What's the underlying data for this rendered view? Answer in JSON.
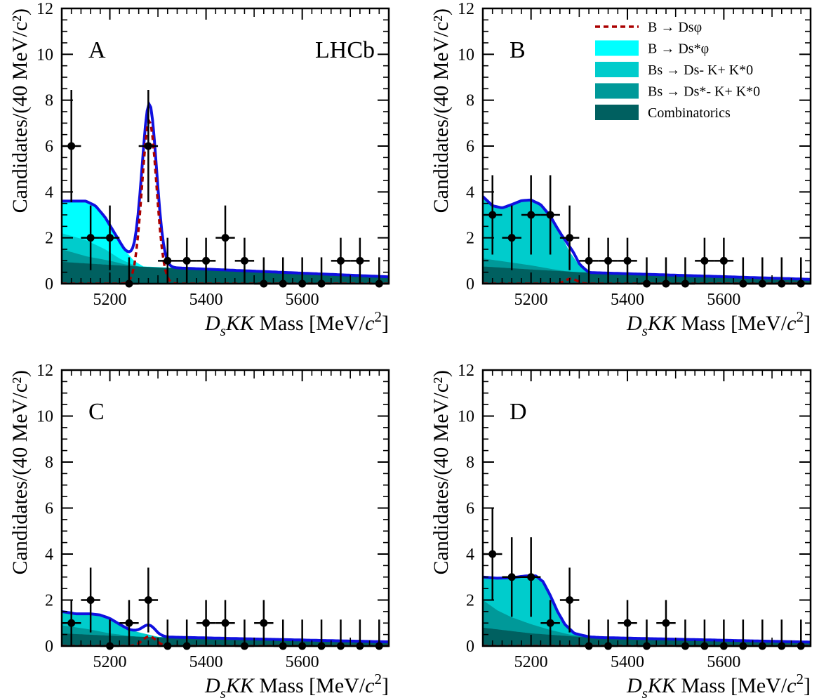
{
  "chart_data": [
    {
      "type": "line",
      "panel_label": "A",
      "experiment_label": "LHCb",
      "xlabel_parts": [
        "D",
        "s",
        "KK",
        " Mass [MeV/",
        "c",
        "2",
        "]"
      ],
      "ylabel": "Candidates/(40 MeV/c²)",
      "xlim": [
        5100,
        5780
      ],
      "ylim": [
        0,
        12
      ],
      "x_ticks": [
        5200,
        5400,
        5600
      ],
      "y_ticks": [
        0,
        2,
        4,
        6,
        8,
        10,
        12
      ],
      "points": {
        "x": [
          5120,
          5160,
          5200,
          5240,
          5280,
          5320,
          5360,
          5400,
          5440,
          5480,
          5520,
          5560,
          5600,
          5640,
          5680,
          5720,
          5760
        ],
        "y": [
          6,
          2,
          2,
          0,
          6,
          1,
          1,
          1,
          2,
          1,
          0,
          0,
          0,
          0,
          1,
          1,
          0
        ],
        "err_up": [
          2.45,
          1.41,
          1.41,
          1.15,
          2.45,
          1,
          1,
          1,
          1.41,
          1,
          1.15,
          1.15,
          1.15,
          1.15,
          1,
          1,
          1.15
        ]
      },
      "series": [
        {
          "name": "Combinatorics",
          "color": "#006060",
          "x": [
            5100,
            5200,
            5300,
            5400,
            5500,
            5600,
            5700,
            5780
          ],
          "y": [
            0.95,
            0.82,
            0.7,
            0.6,
            0.5,
            0.42,
            0.35,
            0.3
          ]
        },
        {
          "name": "Bs → Ds*- K+ K*0",
          "color": "#009999",
          "x": [
            5100,
            5150,
            5200,
            5230,
            5260,
            5780
          ],
          "y": [
            1.5,
            1.2,
            1.0,
            0.85,
            0.75,
            0.3
          ]
        },
        {
          "name": "Bs → Ds- K+ K*0",
          "color": "#00cccc",
          "x": [
            5100,
            5150,
            5190,
            5220,
            5250,
            5270,
            5780
          ],
          "y": [
            2.2,
            1.9,
            1.5,
            1.1,
            0.8,
            0.72,
            0.3
          ]
        },
        {
          "name": "B → Ds*φ",
          "color": "#00ffff",
          "x": [
            5100,
            5150,
            5170,
            5190,
            5210,
            5230,
            5250,
            5270,
            5780
          ],
          "y": [
            3.6,
            3.6,
            3.4,
            2.9,
            2.2,
            1.5,
            1.0,
            0.75,
            0.3
          ]
        },
        {
          "name": "B → Dsφ",
          "color": "#aa0000",
          "peak": 7.1,
          "mean": 5282,
          "sigma": 15
        },
        {
          "name": "total",
          "color": "#1010e0"
        }
      ]
    },
    {
      "type": "line",
      "panel_label": "B",
      "xlabel_parts": [
        "D",
        "s",
        "KK",
        " Mass [MeV/",
        "c",
        "2",
        "]"
      ],
      "ylabel": "Candidates/(40 MeV/c²)",
      "xlim": [
        5100,
        5780
      ],
      "ylim": [
        0,
        12
      ],
      "x_ticks": [
        5200,
        5400,
        5600
      ],
      "y_ticks": [
        0,
        2,
        4,
        6,
        8,
        10,
        12
      ],
      "legend": [
        {
          "label": "B → Dsφ",
          "style": "dashed",
          "color": "#aa0000"
        },
        {
          "label": "B → Ds*φ",
          "style": "fill",
          "color": "#00ffff"
        },
        {
          "label": "Bs → Ds- K+ K*0",
          "style": "fill",
          "color": "#00cccc"
        },
        {
          "label": "Bs → Ds*- K+ K*0",
          "style": "fill",
          "color": "#009999"
        },
        {
          "label": "Combinatorics",
          "style": "fill",
          "color": "#006060"
        }
      ],
      "points": {
        "x": [
          5120,
          5160,
          5200,
          5240,
          5280,
          5320,
          5360,
          5400,
          5440,
          5480,
          5520,
          5560,
          5600,
          5640,
          5680,
          5720,
          5760
        ],
        "y": [
          3,
          2,
          3,
          3,
          2,
          1,
          1,
          1,
          0,
          0,
          0,
          1,
          1,
          0,
          0,
          0,
          0
        ],
        "err_up": [
          1.73,
          1.41,
          1.73,
          1.73,
          1.41,
          1,
          1,
          1,
          1.15,
          1.15,
          1.15,
          1,
          1,
          1.15,
          1.15,
          1.15,
          1.15
        ]
      },
      "series": [
        {
          "name": "Combinatorics",
          "color": "#006060",
          "x": [
            5100,
            5200,
            5300,
            5400,
            5500,
            5600,
            5700,
            5780
          ],
          "y": [
            0.75,
            0.62,
            0.5,
            0.4,
            0.33,
            0.27,
            0.22,
            0.19
          ]
        },
        {
          "name": "Bs → Ds*- K+ K*0",
          "color": "#009999",
          "x": [
            5100,
            5150,
            5200,
            5240,
            5270,
            5300,
            5780
          ],
          "y": [
            1.1,
            0.95,
            0.8,
            0.65,
            0.55,
            0.5,
            0.19
          ]
        },
        {
          "name": "Bs → Ds- K+ K*0",
          "color": "#00cccc",
          "x": [
            5100,
            5120,
            5140,
            5160,
            5180,
            5200,
            5220,
            5240,
            5260,
            5280,
            5300,
            5320,
            5340,
            5780
          ],
          "y": [
            3.8,
            3.4,
            3.3,
            3.45,
            3.62,
            3.65,
            3.45,
            2.95,
            2.2,
            1.4,
            0.8,
            0.5,
            0.42,
            0.19
          ]
        },
        {
          "name": "B → Ds*φ",
          "color": "#00ffff",
          "x": [
            5100,
            5780
          ],
          "y": [
            0,
            0
          ]
        },
        {
          "name": "B → Dsφ",
          "color": "#aa0000",
          "peak": 0.22,
          "mean": 5283,
          "sigma": 12
        },
        {
          "name": "total",
          "color": "#1010e0"
        }
      ]
    },
    {
      "type": "line",
      "panel_label": "C",
      "xlabel_parts": [
        "D",
        "s",
        "KK",
        " Mass [MeV/",
        "c",
        "2",
        "]"
      ],
      "ylabel": "Candidates/(40 MeV/c²)",
      "xlim": [
        5100,
        5780
      ],
      "ylim": [
        0,
        12
      ],
      "x_ticks": [
        5200,
        5400,
        5600
      ],
      "y_ticks": [
        0,
        2,
        4,
        6,
        8,
        10,
        12
      ],
      "points": {
        "x": [
          5120,
          5160,
          5200,
          5240,
          5280,
          5320,
          5360,
          5400,
          5440,
          5480,
          5520,
          5560,
          5600,
          5640,
          5680,
          5720,
          5760
        ],
        "y": [
          1,
          2,
          0,
          1,
          2,
          0,
          0,
          1,
          1,
          0,
          1,
          0,
          0,
          0,
          0,
          0,
          0
        ],
        "err_up": [
          1,
          1.41,
          1.15,
          1,
          1.41,
          1.15,
          1.15,
          1,
          1,
          1.15,
          1,
          1.15,
          1.15,
          1.15,
          1.15,
          1.15,
          1.15
        ]
      },
      "series": [
        {
          "name": "Combinatorics",
          "color": "#006060",
          "x": [
            5100,
            5200,
            5300,
            5400,
            5500,
            5600,
            5700,
            5780
          ],
          "y": [
            0.55,
            0.45,
            0.38,
            0.32,
            0.27,
            0.23,
            0.2,
            0.18
          ]
        },
        {
          "name": "Bs → Ds*- K+ K*0",
          "color": "#009999",
          "x": [
            5100,
            5150,
            5200,
            5250,
            5300,
            5780
          ],
          "y": [
            0.9,
            0.75,
            0.55,
            0.42,
            0.35,
            0.18
          ]
        },
        {
          "name": "Bs → Ds- K+ K*0",
          "color": "#00cccc",
          "x": [
            5100,
            5130,
            5160,
            5180,
            5200,
            5220,
            5240,
            5260,
            5300,
            5780
          ],
          "y": [
            1.5,
            1.4,
            1.4,
            1.35,
            1.2,
            0.95,
            0.72,
            0.6,
            0.4,
            0.18
          ]
        },
        {
          "name": "B → Ds*φ",
          "color": "#00ffff",
          "x": [
            5100,
            5780
          ],
          "y": [
            0,
            0
          ]
        },
        {
          "name": "B → Dsφ",
          "color": "#aa0000",
          "peak": 0.42,
          "mean": 5282,
          "sigma": 14
        },
        {
          "name": "total",
          "color": "#1010e0"
        }
      ]
    },
    {
      "type": "line",
      "panel_label": "D",
      "xlabel_parts": [
        "D",
        "s",
        "KK",
        " Mass [MeV/",
        "c",
        "2",
        "]"
      ],
      "ylabel": "Candidates/(40 MeV/c²)",
      "xlim": [
        5100,
        5780
      ],
      "ylim": [
        0,
        12
      ],
      "x_ticks": [
        5200,
        5400,
        5600
      ],
      "y_ticks": [
        0,
        2,
        4,
        6,
        8,
        10,
        12
      ],
      "points": {
        "x": [
          5120,
          5160,
          5200,
          5240,
          5280,
          5320,
          5360,
          5400,
          5440,
          5480,
          5520,
          5560,
          5600,
          5640,
          5680,
          5720,
          5760
        ],
        "y": [
          4,
          3,
          3,
          1,
          2,
          0,
          0,
          1,
          0,
          1,
          0,
          0,
          0,
          0,
          0,
          0,
          0
        ],
        "err_up": [
          2,
          1.73,
          1.73,
          1,
          1.41,
          1.15,
          1.15,
          1,
          1.15,
          1,
          1.15,
          1.15,
          1.15,
          1.15,
          1.15,
          1.15,
          1.15
        ]
      },
      "series": [
        {
          "name": "Combinatorics",
          "color": "#006060",
          "x": [
            5100,
            5200,
            5300,
            5400,
            5500,
            5600,
            5700,
            5780
          ],
          "y": [
            0.8,
            0.55,
            0.4,
            0.32,
            0.26,
            0.22,
            0.19,
            0.17
          ]
        },
        {
          "name": "Bs → Ds*- K+ K*0",
          "color": "#009999",
          "x": [
            5100,
            5130,
            5160,
            5200,
            5240,
            5280,
            5320,
            5780
          ],
          "y": [
            2.0,
            1.55,
            1.25,
            0.95,
            0.7,
            0.5,
            0.38,
            0.17
          ]
        },
        {
          "name": "Bs → Ds- K+ K*0",
          "color": "#00cccc",
          "x": [
            5100,
            5130,
            5160,
            5190,
            5210,
            5225,
            5240,
            5255,
            5270,
            5290,
            5320,
            5360,
            5780
          ],
          "y": [
            3.0,
            2.95,
            2.97,
            3.05,
            3.05,
            2.8,
            2.2,
            1.5,
            0.95,
            0.55,
            0.4,
            0.35,
            0.17
          ]
        },
        {
          "name": "B → Ds*φ",
          "color": "#00ffff",
          "x": [
            5100,
            5780
          ],
          "y": [
            0,
            0
          ]
        },
        {
          "name": "B → Dsφ",
          "color": "#aa0000",
          "peak": 0.0,
          "mean": 5282,
          "sigma": 14
        },
        {
          "name": "total",
          "color": "#1010e0"
        }
      ]
    }
  ]
}
